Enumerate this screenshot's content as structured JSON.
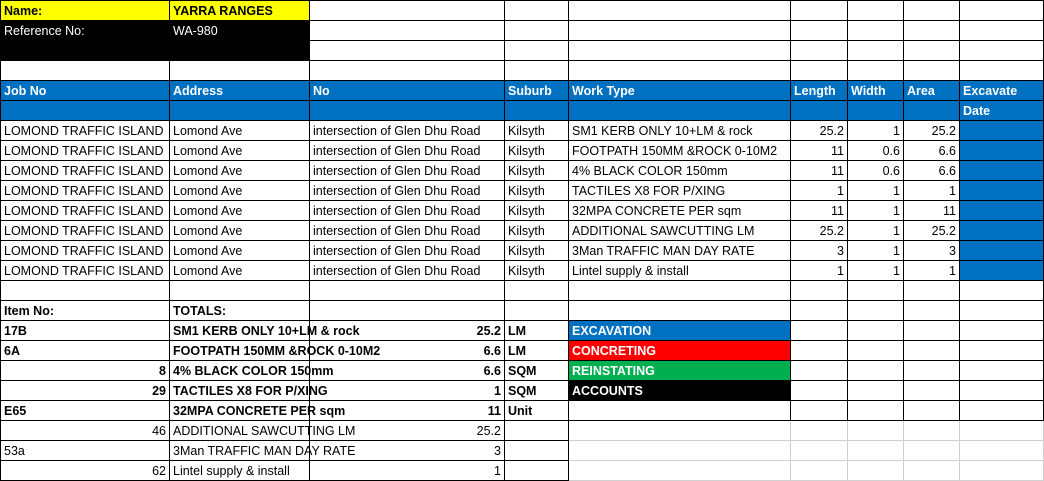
{
  "colors": {
    "header_blue": "#0070c0",
    "name_yellow": "#ffff00",
    "excavation": "#0070c0",
    "concreting": "#ff0000",
    "reinstating": "#00b050",
    "accounts": "#000000"
  },
  "info": {
    "name_label": "Name:",
    "name_value": "YARRA RANGES",
    "ref_label": "Reference No:",
    "ref_value": "WA-980"
  },
  "headers": [
    "Job No",
    "Address",
    "No",
    "Suburb",
    "Work Type",
    "Length",
    "Width",
    "Area",
    "Excavate"
  ],
  "header_sub": "Date",
  "jobs": [
    [
      "LOMOND TRAFFIC ISLAND",
      "Lomond Ave",
      "intersection of Glen Dhu Road",
      "Kilsyth",
      "SM1 KERB ONLY 10+LM & rock",
      "25.2",
      "1",
      "25.2"
    ],
    [
      "LOMOND TRAFFIC ISLAND",
      "Lomond Ave",
      "intersection of Glen Dhu Road",
      "Kilsyth",
      "FOOTPATH 150MM &ROCK 0-10M2",
      "11",
      "0.6",
      "6.6"
    ],
    [
      "LOMOND TRAFFIC ISLAND",
      "Lomond Ave",
      "intersection of Glen Dhu Road",
      "Kilsyth",
      "4% BLACK COLOR 150mm",
      "11",
      "0.6",
      "6.6"
    ],
    [
      "LOMOND TRAFFIC ISLAND",
      "Lomond Ave",
      "intersection of Glen Dhu Road",
      "Kilsyth",
      "TACTILES X8 FOR P/XING",
      "1",
      "1",
      "1"
    ],
    [
      "LOMOND TRAFFIC ISLAND",
      "Lomond Ave",
      "intersection of Glen Dhu Road",
      "Kilsyth",
      "32MPA CONCRETE  PER sqm",
      "11",
      "1",
      "11"
    ],
    [
      "LOMOND TRAFFIC ISLAND",
      "Lomond Ave",
      "intersection of Glen Dhu Road",
      "Kilsyth",
      "ADDITIONAL SAWCUTTING LM",
      "25.2",
      "1",
      "25.2"
    ],
    [
      "LOMOND TRAFFIC ISLAND",
      "Lomond Ave",
      "intersection of Glen Dhu Road",
      "Kilsyth",
      "3Man TRAFFIC MAN DAY RATE",
      "3",
      "1",
      "3"
    ],
    [
      "LOMOND TRAFFIC ISLAND",
      "Lomond Ave",
      "intersection of Glen Dhu Road",
      "Kilsyth",
      "Lintel supply & install",
      "1",
      "1",
      "1"
    ]
  ],
  "totals_header": {
    "item_label": "Item No:",
    "totals_label": "TOTALS:"
  },
  "totals": [
    {
      "item": "17B",
      "desc": "SM1 KERB ONLY 10+LM & rock",
      "value": "25.2",
      "unit": "LM",
      "bold": true,
      "numeric_item": false
    },
    {
      "item": "6A",
      "desc": "FOOTPATH 150MM &ROCK 0-10M2",
      "value": "6.6",
      "unit": "LM",
      "bold": true,
      "numeric_item": false
    },
    {
      "item": "8",
      "desc": "4% BLACK COLOR 150mm",
      "value": "6.6",
      "unit": "SQM",
      "bold": true,
      "numeric_item": true
    },
    {
      "item": "29",
      "desc": "TACTILES X8 FOR P/XING",
      "value": "1",
      "unit": "SQM",
      "bold": true,
      "numeric_item": true
    },
    {
      "item": "E65",
      "desc": "32MPA CONCRETE  PER sqm",
      "value": "11",
      "unit": "Unit",
      "bold": true,
      "numeric_item": false
    },
    {
      "item": "46",
      "desc": "ADDITIONAL SAWCUTTING LM",
      "value": "25.2",
      "unit": "",
      "bold": false,
      "numeric_item": true
    },
    {
      "item": "53a",
      "desc": "3Man TRAFFIC MAN DAY RATE",
      "value": "3",
      "unit": "",
      "bold": false,
      "numeric_item": false
    },
    {
      "item": "62",
      "desc": "Lintel supply & install",
      "value": "1",
      "unit": "",
      "bold": false,
      "numeric_item": true
    }
  ],
  "legend": [
    "EXCAVATION",
    "CONCRETING",
    "REINSTATING",
    "ACCOUNTS"
  ]
}
